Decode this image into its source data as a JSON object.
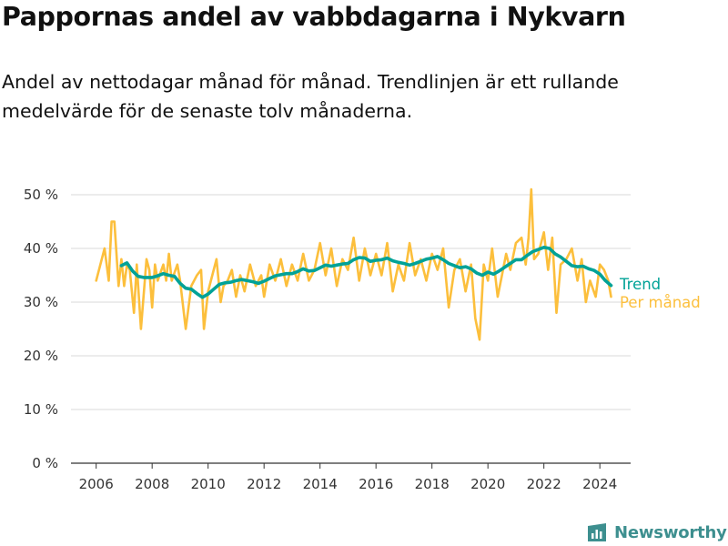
{
  "title": "Pappornas andel av vabbdagarna i Nykvarn",
  "subtitle": "Andel av nettodagar månad för månad. Trendlinjen är ett rullande medelvärde för de senaste tolv månaderna.",
  "brand": {
    "name": "Newsworthy",
    "icon": "newsworthy-logo-icon",
    "color": "#3d8f8f"
  },
  "chart_data": {
    "type": "line",
    "x_unit": "year",
    "y_unit": "percent",
    "xlim": [
      2005.1,
      2025.1
    ],
    "ylim": [
      0,
      50
    ],
    "x_ticks": [
      {
        "value": 2006,
        "label": "2006"
      },
      {
        "value": 2008,
        "label": "2008"
      },
      {
        "value": 2010,
        "label": "2010"
      },
      {
        "value": 2012,
        "label": "2012"
      },
      {
        "value": 2014,
        "label": "2014"
      },
      {
        "value": 2016,
        "label": "2016"
      },
      {
        "value": 2018,
        "label": "2018"
      },
      {
        "value": 2020,
        "label": "2020"
      },
      {
        "value": 2022,
        "label": "2022"
      },
      {
        "value": 2024,
        "label": "2024"
      }
    ],
    "y_ticks": [
      {
        "value": 0,
        "label": "0 %"
      },
      {
        "value": 10,
        "label": "10 %"
      },
      {
        "value": 20,
        "label": "20 %"
      },
      {
        "value": 30,
        "label": "30 %"
      },
      {
        "value": 40,
        "label": "40 %"
      },
      {
        "value": 50,
        "label": "50 %"
      }
    ],
    "grid": "horizontal",
    "legend": "right-of-lines",
    "series": [
      {
        "name": "Per månad",
        "color": "#fcbf3c",
        "x": [
          2006.0,
          2006.15,
          2006.3,
          2006.45,
          2006.55,
          2006.65,
          2006.8,
          2006.9,
          2007.0,
          2007.1,
          2007.2,
          2007.35,
          2007.45,
          2007.6,
          2007.8,
          2007.9,
          2008.0,
          2008.1,
          2008.2,
          2008.4,
          2008.5,
          2008.6,
          2008.7,
          2008.9,
          2009.0,
          2009.2,
          2009.4,
          2009.6,
          2009.75,
          2009.85,
          2010.0,
          2010.15,
          2010.3,
          2010.45,
          2010.55,
          2010.7,
          2010.85,
          2011.0,
          2011.15,
          2011.3,
          2011.5,
          2011.7,
          2011.9,
          2012.0,
          2012.2,
          2012.4,
          2012.6,
          2012.8,
          2013.0,
          2013.2,
          2013.4,
          2013.6,
          2013.8,
          2014.0,
          2014.2,
          2014.4,
          2014.6,
          2014.8,
          2015.0,
          2015.2,
          2015.4,
          2015.6,
          2015.8,
          2016.0,
          2016.2,
          2016.4,
          2016.6,
          2016.8,
          2017.0,
          2017.2,
          2017.4,
          2017.6,
          2017.8,
          2018.0,
          2018.2,
          2018.4,
          2018.6,
          2018.8,
          2019.0,
          2019.2,
          2019.4,
          2019.55,
          2019.7,
          2019.85,
          2020.0,
          2020.15,
          2020.35,
          2020.5,
          2020.65,
          2020.8,
          2021.0,
          2021.2,
          2021.35,
          2021.45,
          2021.55,
          2021.65,
          2021.8,
          2022.0,
          2022.15,
          2022.3,
          2022.45,
          2022.6,
          2022.8,
          2023.0,
          2023.2,
          2023.35,
          2023.5,
          2023.65,
          2023.85,
          2024.0,
          2024.15,
          2024.3,
          2024.4
        ],
        "values": [
          34,
          37,
          40,
          34,
          45,
          45,
          33,
          38,
          33,
          37,
          36,
          28,
          37,
          25,
          38,
          36,
          29,
          37,
          34,
          37,
          34,
          39,
          34,
          37,
          34,
          25,
          33,
          35,
          36,
          25,
          32,
          35,
          38,
          30,
          33,
          34,
          36,
          31,
          35,
          32,
          37,
          33,
          35,
          31,
          37,
          34,
          38,
          33,
          37,
          34,
          39,
          34,
          36,
          41,
          35,
          40,
          33,
          38,
          36,
          42,
          34,
          40,
          35,
          39,
          35,
          41,
          32,
          37,
          34,
          41,
          35,
          38,
          34,
          39,
          36,
          40,
          29,
          36,
          38,
          32,
          37,
          27,
          23,
          37,
          34,
          40,
          31,
          35,
          39,
          36,
          41,
          42,
          37,
          42,
          51,
          38,
          39,
          43,
          36,
          42,
          28,
          37,
          38,
          40,
          34,
          38,
          30,
          34,
          31,
          37,
          36,
          34,
          31
        ]
      },
      {
        "name": "Trend",
        "color": "#00a297",
        "x": [
          2006.9,
          2007.1,
          2007.3,
          2007.5,
          2007.7,
          2008.0,
          2008.2,
          2008.4,
          2008.6,
          2008.8,
          2009.0,
          2009.2,
          2009.4,
          2009.6,
          2009.8,
          2010.0,
          2010.2,
          2010.4,
          2010.6,
          2010.8,
          2011.0,
          2011.2,
          2011.4,
          2011.6,
          2011.8,
          2012.0,
          2012.2,
          2012.4,
          2012.6,
          2012.8,
          2013.0,
          2013.2,
          2013.4,
          2013.6,
          2013.8,
          2014.0,
          2014.2,
          2014.4,
          2014.6,
          2014.8,
          2015.0,
          2015.2,
          2015.4,
          2015.6,
          2015.8,
          2016.0,
          2016.2,
          2016.4,
          2016.6,
          2016.8,
          2017.0,
          2017.2,
          2017.4,
          2017.6,
          2017.8,
          2018.0,
          2018.2,
          2018.4,
          2018.6,
          2018.8,
          2019.0,
          2019.2,
          2019.4,
          2019.6,
          2019.8,
          2020.0,
          2020.2,
          2020.4,
          2020.6,
          2020.8,
          2021.0,
          2021.2,
          2021.4,
          2021.6,
          2021.8,
          2022.0,
          2022.2,
          2022.4,
          2022.6,
          2022.8,
          2023.0,
          2023.2,
          2023.4,
          2023.6,
          2023.8,
          2024.0,
          2024.2,
          2024.4
        ],
        "values": [
          36.8,
          37.3,
          35.8,
          34.8,
          34.6,
          34.6,
          34.9,
          35.3,
          35.0,
          34.8,
          33.5,
          32.6,
          32.4,
          31.6,
          30.9,
          31.5,
          32.4,
          33.3,
          33.6,
          33.7,
          34.0,
          34.2,
          34.0,
          33.8,
          33.5,
          33.9,
          34.4,
          34.9,
          35.1,
          35.3,
          35.3,
          35.7,
          36.2,
          35.8,
          35.9,
          36.4,
          36.9,
          36.7,
          36.9,
          37.1,
          37.2,
          37.9,
          38.3,
          38.2,
          37.6,
          37.8,
          37.9,
          38.2,
          37.7,
          37.4,
          37.2,
          36.9,
          37.2,
          37.6,
          38.0,
          38.2,
          38.5,
          37.9,
          37.2,
          36.8,
          36.4,
          36.6,
          36.2,
          35.4,
          35.0,
          35.6,
          35.2,
          35.8,
          36.5,
          37.2,
          37.9,
          37.9,
          38.7,
          39.4,
          39.8,
          40.2,
          40.0,
          39.0,
          38.4,
          37.6,
          36.8,
          36.6,
          36.7,
          36.2,
          35.9,
          35.2,
          34.0,
          33.1
        ]
      }
    ]
  }
}
